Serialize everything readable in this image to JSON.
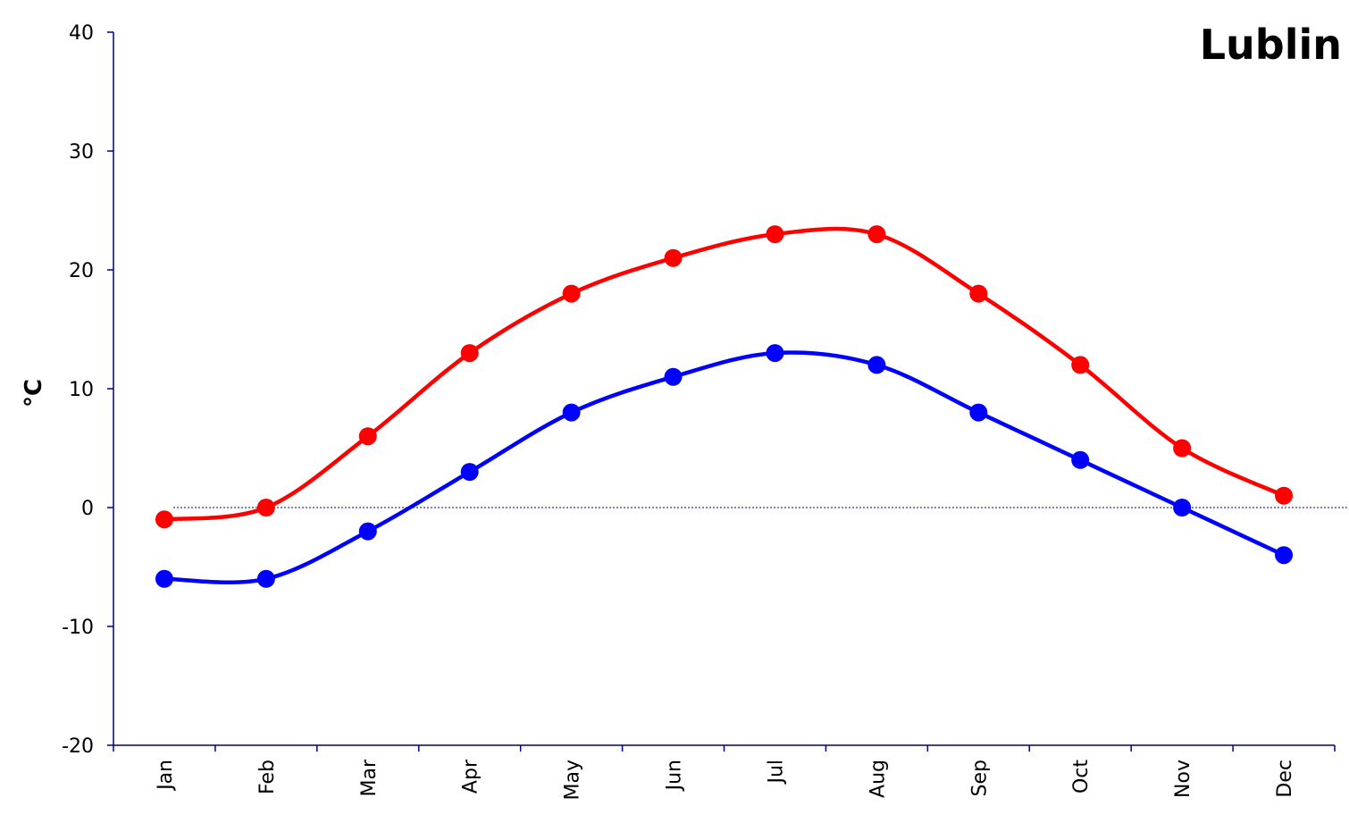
{
  "chart_data": {
    "type": "line",
    "title": "Lublin",
    "xlabel": "",
    "ylabel": "°C",
    "ylim": [
      -20,
      40
    ],
    "yticks": [
      -20,
      -10,
      0,
      10,
      20,
      30,
      40
    ],
    "categories": [
      "Jan",
      "Feb",
      "Mar",
      "Apr",
      "May",
      "Jun",
      "Jul",
      "Aug",
      "Sep",
      "Oct",
      "Nov",
      "Dec"
    ],
    "series": [
      {
        "color": "#ff0000",
        "values": [
          -1,
          0,
          6,
          13,
          18,
          21,
          23,
          23,
          18,
          12,
          5,
          1
        ]
      },
      {
        "color": "#0000ff",
        "values": [
          -6,
          -6,
          -2,
          3,
          8,
          11,
          13,
          12,
          8,
          4,
          0,
          -4
        ]
      }
    ],
    "zero_line": true,
    "grid": false,
    "smooth": true
  }
}
